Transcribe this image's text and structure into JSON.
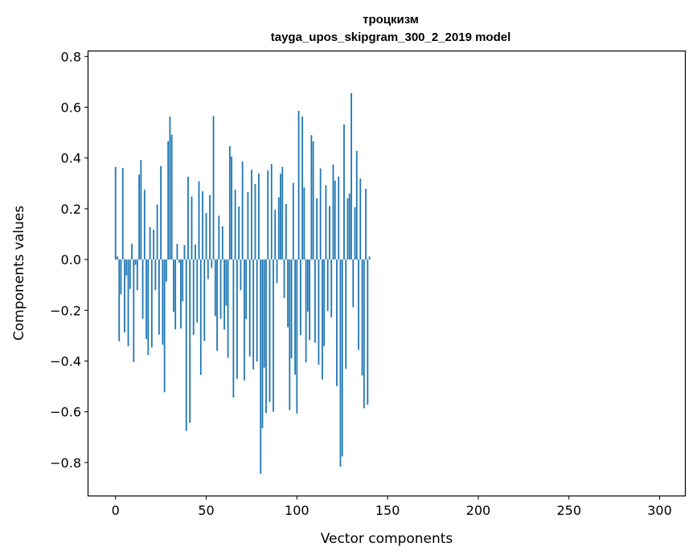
{
  "chart_data": {
    "type": "bar",
    "title": "троцкизм",
    "subtitle": "tayga_upos_skipgram_300_2_2019 model",
    "xlabel": "Vector components",
    "ylabel": "Components values",
    "xlim": [
      -14.95,
      313.95
    ],
    "ylim": [
      -0.93,
      0.82
    ],
    "xticks": [
      0,
      50,
      100,
      150,
      200,
      250,
      300
    ],
    "xtick_labels": [
      "0",
      "50",
      "100",
      "150",
      "200",
      "250",
      "300"
    ],
    "yticks": [
      -0.8,
      -0.6,
      -0.4,
      -0.2,
      0.0,
      0.2,
      0.4,
      0.6,
      0.8
    ],
    "ytick_labels": [
      "−0.8",
      "−0.6",
      "−0.4",
      "−0.2",
      "0.0",
      "0.2",
      "0.4",
      "0.6",
      "0.8"
    ],
    "bar_color": "#1f77b4",
    "grid": false,
    "values": [
      0.365,
      0.012,
      -0.322,
      -0.137,
      0.361,
      -0.287,
      -0.064,
      -0.342,
      -0.116,
      0.062,
      -0.404,
      -0.021,
      -0.121,
      0.335,
      0.392,
      -0.233,
      0.275,
      -0.313,
      -0.376,
      0.127,
      -0.346,
      0.118,
      -0.12,
      0.217,
      -0.296,
      0.368,
      -0.336,
      -0.523,
      -0.087,
      0.466,
      0.563,
      0.492,
      -0.206,
      -0.275,
      0.061,
      -0.012,
      -0.272,
      -0.165,
      0.057,
      -0.675,
      0.326,
      -0.643,
      0.248,
      -0.297,
      0.059,
      -0.248,
      0.308,
      -0.455,
      0.269,
      -0.321,
      0.183,
      -0.077,
      0.254,
      -0.034,
      0.565,
      -0.223,
      -0.36,
      0.173,
      -0.233,
      0.131,
      -0.276,
      -0.182,
      -0.387,
      0.447,
      0.406,
      -0.544,
      0.275,
      -0.47,
      0.209,
      -0.121,
      0.386,
      -0.476,
      -0.235,
      0.266,
      -0.382,
      0.354,
      -0.433,
      0.298,
      -0.402,
      0.338,
      -0.844,
      -0.665,
      -0.426,
      -0.605,
      0.351,
      -0.561,
      0.377,
      -0.6,
      0.196,
      -0.093,
      0.245,
      0.338,
      0.365,
      -0.151,
      0.219,
      -0.267,
      -0.594,
      -0.39,
      0.302,
      -0.454,
      -0.607,
      0.586,
      -0.298,
      0.563,
      0.284,
      -0.405,
      -0.205,
      -0.318,
      0.49,
      0.465,
      -0.328,
      0.241,
      -0.414,
      0.359,
      -0.473,
      -0.341,
      0.293,
      -0.203,
      0.211,
      -0.228,
      0.375,
      0.311,
      -0.499,
      0.327,
      -0.816,
      -0.776,
      0.532,
      -0.431,
      0.241,
      0.26,
      0.656,
      -0.188,
      0.206,
      0.428,
      -0.356,
      0.319,
      -0.457,
      -0.586,
      0.279,
      -0.572,
      0.012
    ]
  }
}
